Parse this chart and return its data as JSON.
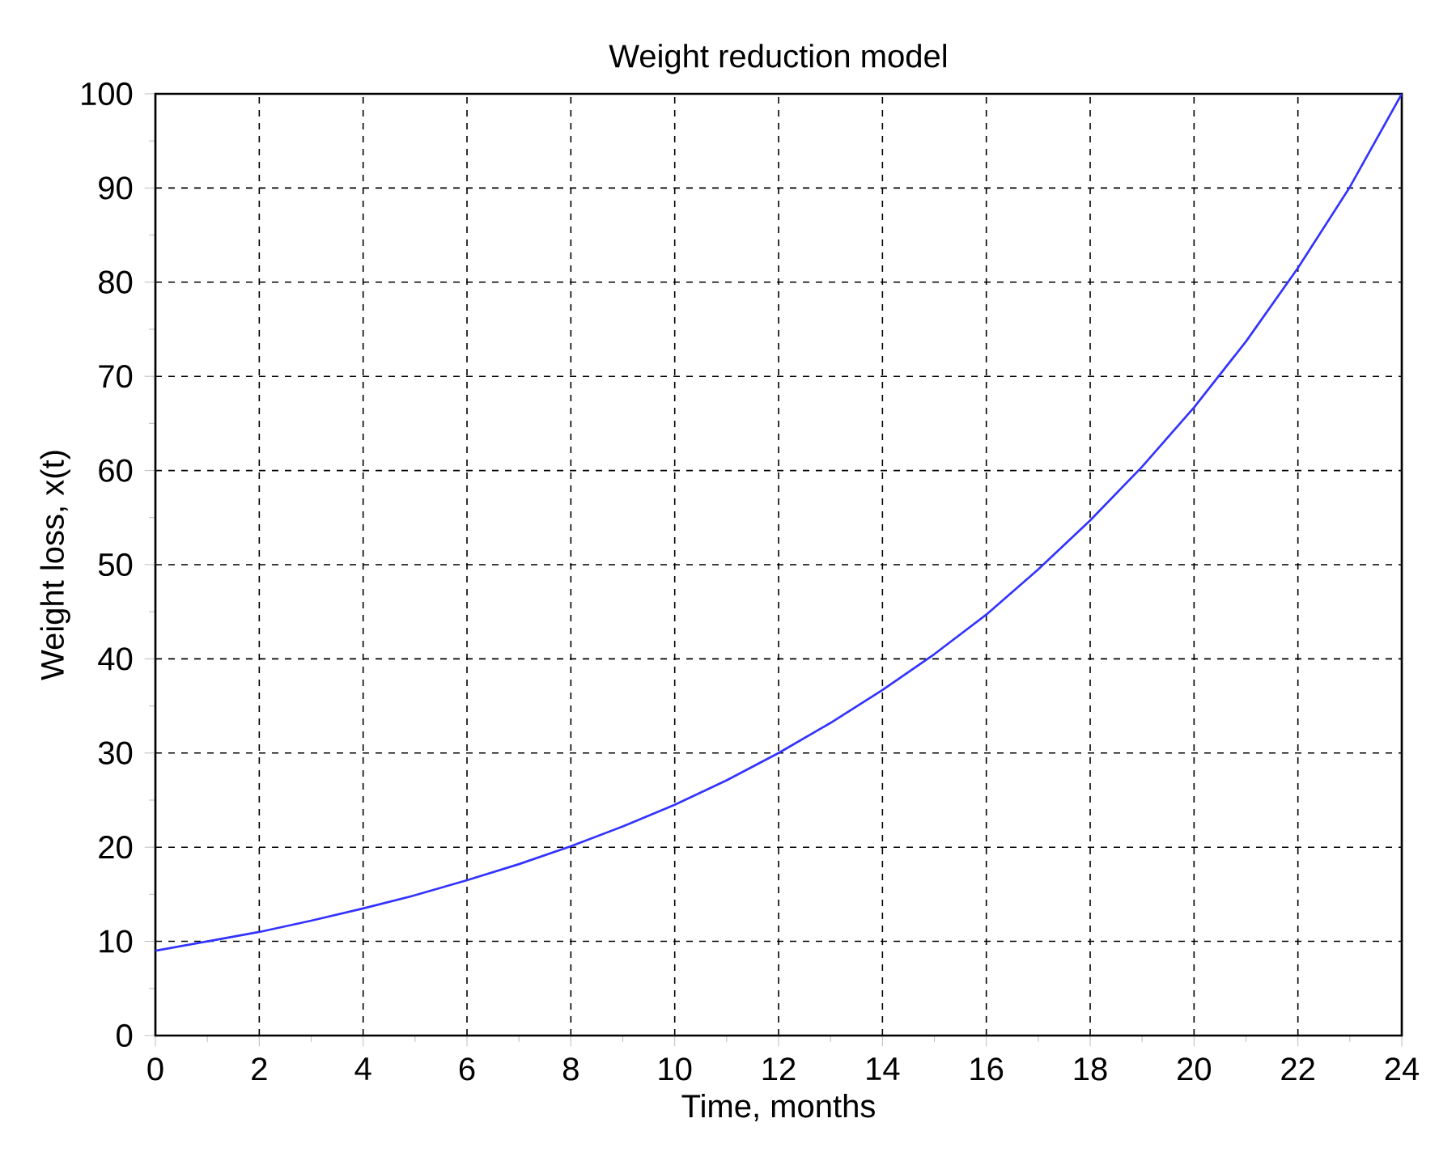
{
  "chart_data": {
    "type": "line",
    "title": "Weight reduction model",
    "xlabel": "Time, months",
    "ylabel": "Weight loss, x(t)",
    "x": [
      0,
      1,
      2,
      3,
      4,
      5,
      6,
      7,
      8,
      9,
      10,
      11,
      12,
      13,
      14,
      15,
      16,
      17,
      18,
      19,
      20,
      21,
      22,
      23,
      24
    ],
    "series": [
      {
        "color": "#3333ff",
        "values": [
          9,
          10,
          11,
          12.2,
          13.5,
          14.9,
          16.5,
          18.2,
          20.1,
          22.2,
          24.5,
          27.1,
          30,
          33.2,
          36.7,
          40.5,
          44.7,
          49.5,
          54.7,
          60.4,
          66.7,
          73.7,
          81.5,
          90.1,
          100
        ]
      }
    ],
    "xlim": [
      0,
      24
    ],
    "ylim": [
      0,
      100
    ],
    "xticks": [
      0,
      2,
      4,
      6,
      8,
      10,
      12,
      14,
      16,
      18,
      20,
      22,
      24
    ],
    "yticks": [
      0,
      10,
      20,
      30,
      40,
      50,
      60,
      70,
      80,
      90,
      100
    ],
    "grid": true,
    "marker": "none",
    "line_style": "solid"
  }
}
